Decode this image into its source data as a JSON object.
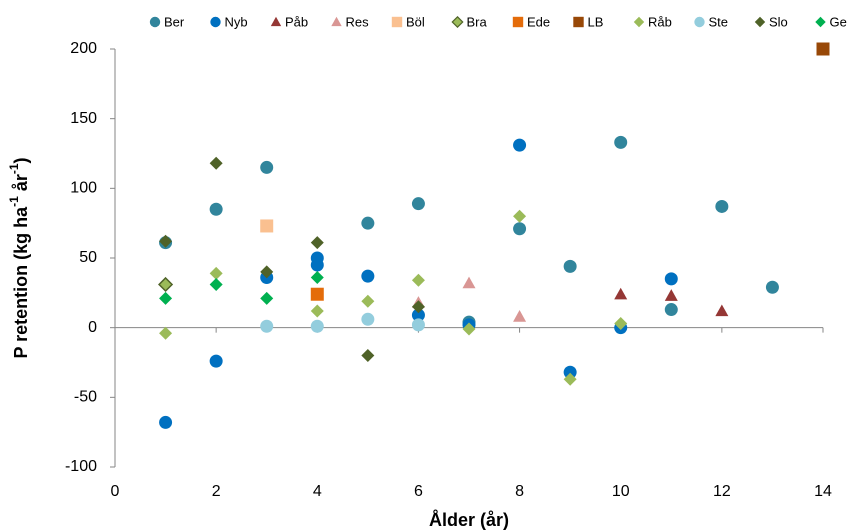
{
  "chart_data": {
    "type": "scatter",
    "xlabel": "Ålder (år)",
    "ylabel": {
      "text": "P retention (kg ha",
      "sup1": "-1",
      "mid": " år",
      "sup2": "-1",
      "end": ")"
    },
    "xlim": [
      0,
      14
    ],
    "xticks": [
      0,
      2,
      4,
      6,
      8,
      10,
      12,
      14
    ],
    "ylim": [
      -100,
      200
    ],
    "yticks": [
      -100,
      -50,
      0,
      50,
      100,
      150,
      200
    ],
    "series": [
      {
        "name": "Ber",
        "marker": "circle",
        "color": "#31859c",
        "x": [
          1,
          2,
          3,
          5,
          6,
          7,
          8,
          9,
          10,
          11,
          12,
          13
        ],
        "values": [
          61,
          85,
          115,
          75,
          89,
          4,
          71,
          44,
          133,
          13,
          87,
          29
        ]
      },
      {
        "name": "Nyb",
        "marker": "circle",
        "color": "#0070c0",
        "x": [
          1,
          2,
          3,
          4,
          4,
          5,
          6,
          7,
          8,
          9,
          10,
          11
        ],
        "values": [
          -68,
          -24,
          36,
          50,
          45,
          37,
          9,
          2,
          131,
          -32,
          0,
          35
        ]
      },
      {
        "name": "Påb",
        "marker": "triangle",
        "color": "#953735",
        "x": [
          10,
          11,
          12
        ],
        "values": [
          24,
          23,
          12
        ]
      },
      {
        "name": "Res",
        "marker": "triangle",
        "color": "#d99694",
        "x": [
          6,
          7,
          8
        ],
        "values": [
          18,
          32,
          8
        ]
      },
      {
        "name": "Böl",
        "marker": "square",
        "color": "#fac090",
        "x": [
          3
        ],
        "values": [
          73
        ]
      },
      {
        "name": "Bra",
        "marker": "diamond",
        "color": "#9bbb59",
        "edgecolor": "#4f6228",
        "x": [
          1
        ],
        "values": [
          31
        ]
      },
      {
        "name": "Ede",
        "marker": "square",
        "color": "#e46c0a",
        "x": [
          4
        ],
        "values": [
          24
        ]
      },
      {
        "name": "LB",
        "marker": "square",
        "color": "#984807",
        "x": [
          14
        ],
        "values": [
          200
        ]
      },
      {
        "name": "Råb",
        "marker": "diamond",
        "color": "#9bbb59",
        "x": [
          1,
          2,
          4,
          5,
          6,
          7,
          8,
          9,
          10
        ],
        "values": [
          -4,
          39,
          12,
          19,
          34,
          -1,
          80,
          -37,
          3
        ]
      },
      {
        "name": "Ste",
        "marker": "circle",
        "color": "#93cddd",
        "x": [
          3,
          4,
          5,
          6
        ],
        "values": [
          1,
          1,
          6,
          2
        ]
      },
      {
        "name": "Slo",
        "marker": "diamond",
        "color": "#4f6228",
        "x": [
          1,
          2,
          3,
          4,
          5,
          6
        ],
        "values": [
          62,
          118,
          40,
          61,
          -20,
          15
        ]
      },
      {
        "name": "Ge",
        "marker": "diamond",
        "color": "#00b050",
        "x": [
          1,
          2,
          3,
          4
        ],
        "values": [
          21,
          31,
          21,
          36
        ]
      }
    ]
  }
}
